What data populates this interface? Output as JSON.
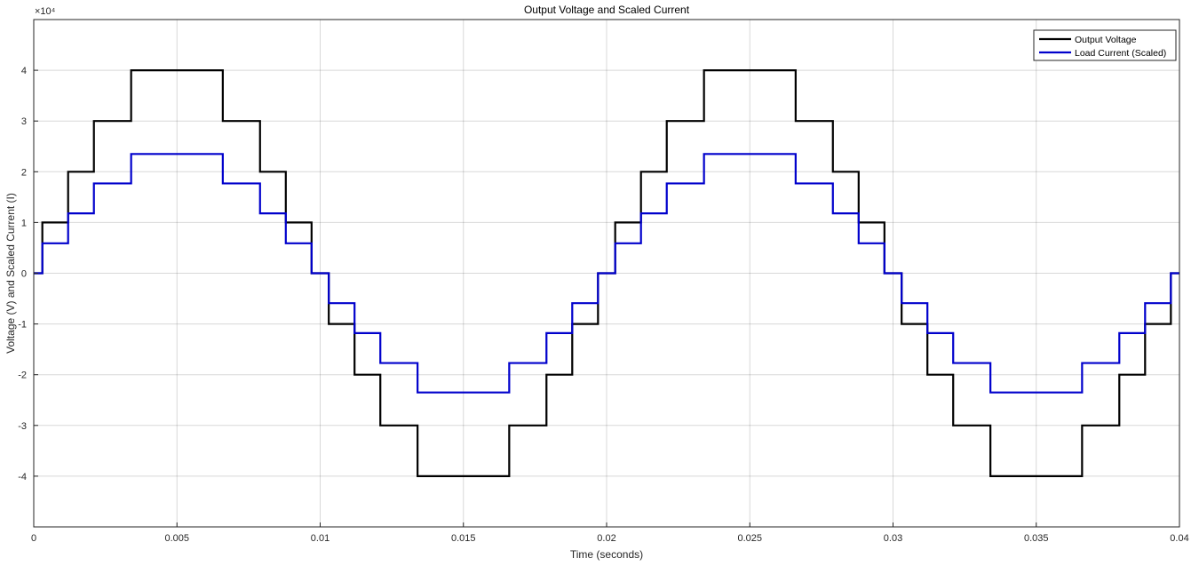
{
  "chart_data": {
    "type": "line",
    "title": "Output Voltage and Scaled Current",
    "xlabel": "Time (seconds)",
    "ylabel": "Voltage (V) and Scaled Current (I)",
    "xlim": [
      0,
      0.04
    ],
    "ylim": [
      -50000,
      50000
    ],
    "x_ticks": [
      0,
      0.005,
      0.01,
      0.015,
      0.02,
      0.025,
      0.03,
      0.035,
      0.04
    ],
    "x_tick_labels": [
      "0",
      "0.005",
      "0.01",
      "0.015",
      "0.02",
      "0.025",
      "0.03",
      "0.035",
      "0.04"
    ],
    "y_ticks": [
      -40000,
      -30000,
      -20000,
      -10000,
      0,
      10000,
      20000,
      30000,
      40000
    ],
    "y_tick_labels": [
      "-4",
      "-3",
      "-2",
      "-1",
      "0",
      "1",
      "2",
      "3",
      "4"
    ],
    "y_exponent_label": "×10⁴",
    "grid": true,
    "legend_position": "top-right",
    "series": [
      {
        "name": "Output Voltage",
        "color": "#000000",
        "step": "post",
        "points": [
          [
            0,
            0
          ],
          [
            0.0003,
            10000
          ],
          [
            0.0012,
            20000
          ],
          [
            0.0021,
            30000
          ],
          [
            0.0034,
            40000
          ],
          [
            0.0066,
            30000
          ],
          [
            0.0079,
            20000
          ],
          [
            0.0088,
            10000
          ],
          [
            0.0097,
            0
          ],
          [
            0.0103,
            -10000
          ],
          [
            0.0112,
            -20000
          ],
          [
            0.0121,
            -30000
          ],
          [
            0.0134,
            -40000
          ],
          [
            0.0166,
            -30000
          ],
          [
            0.0179,
            -20000
          ],
          [
            0.0188,
            -10000
          ],
          [
            0.0197,
            0
          ],
          [
            0.0203,
            10000
          ],
          [
            0.0212,
            20000
          ],
          [
            0.0221,
            30000
          ],
          [
            0.0234,
            40000
          ],
          [
            0.0266,
            30000
          ],
          [
            0.0279,
            20000
          ],
          [
            0.0288,
            10000
          ],
          [
            0.0297,
            0
          ],
          [
            0.0303,
            -10000
          ],
          [
            0.0312,
            -20000
          ],
          [
            0.0321,
            -30000
          ],
          [
            0.0334,
            -40000
          ],
          [
            0.0366,
            -30000
          ],
          [
            0.0379,
            -20000
          ],
          [
            0.0388,
            -10000
          ],
          [
            0.0397,
            0
          ],
          [
            0.04,
            0
          ]
        ]
      },
      {
        "name": "Load Current (Scaled)",
        "color": "#0000cc",
        "step": "post",
        "points": [
          [
            0,
            0
          ],
          [
            0.0003,
            5900
          ],
          [
            0.0012,
            11800
          ],
          [
            0.0021,
            17700
          ],
          [
            0.0034,
            23500
          ],
          [
            0.0066,
            17700
          ],
          [
            0.0079,
            11800
          ],
          [
            0.0088,
            5900
          ],
          [
            0.0097,
            0
          ],
          [
            0.0103,
            -5900
          ],
          [
            0.0112,
            -11800
          ],
          [
            0.0121,
            -17700
          ],
          [
            0.0134,
            -23500
          ],
          [
            0.0166,
            -17700
          ],
          [
            0.0179,
            -11800
          ],
          [
            0.0188,
            -5900
          ],
          [
            0.0197,
            0
          ],
          [
            0.0203,
            5900
          ],
          [
            0.0212,
            11800
          ],
          [
            0.0221,
            17700
          ],
          [
            0.0234,
            23500
          ],
          [
            0.0266,
            17700
          ],
          [
            0.0279,
            11800
          ],
          [
            0.0288,
            5900
          ],
          [
            0.0297,
            0
          ],
          [
            0.0303,
            -5900
          ],
          [
            0.0312,
            -11800
          ],
          [
            0.0321,
            -17700
          ],
          [
            0.0334,
            -23500
          ],
          [
            0.0366,
            -17700
          ],
          [
            0.0379,
            -11800
          ],
          [
            0.0388,
            -5900
          ],
          [
            0.0397,
            0
          ],
          [
            0.04,
            0
          ]
        ]
      }
    ]
  }
}
